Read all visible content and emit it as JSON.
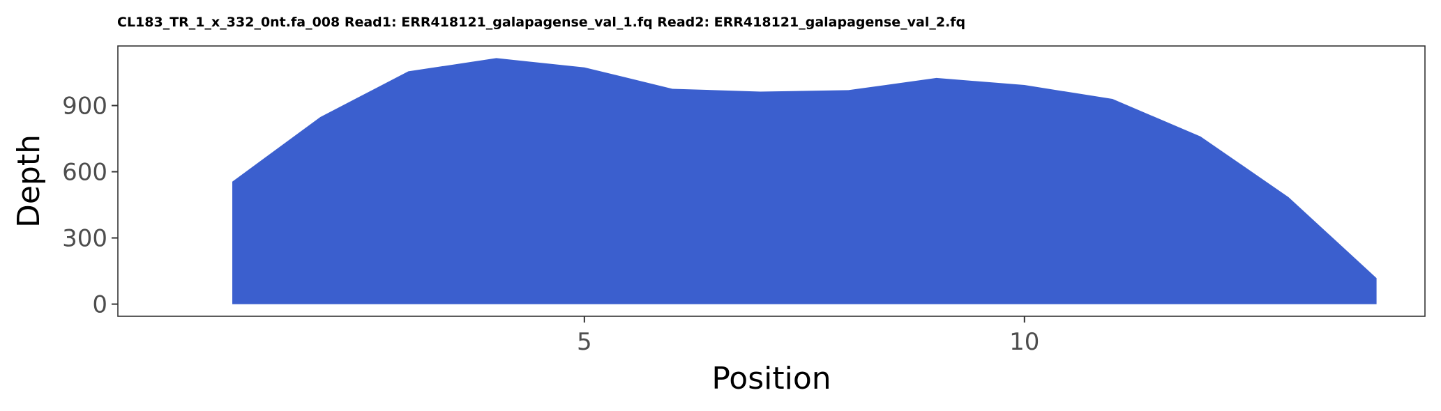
{
  "chart_data": {
    "type": "area",
    "title": "CL183_TR_1_x_332_0nt.fa_008 Read1: ERR418121_galapagense_val_1.fq Read2: ERR418121_galapagense_val_2.fq",
    "xlabel": "Position",
    "ylabel": "Depth",
    "x": [
      1,
      2,
      3,
      4,
      5,
      6,
      7,
      8,
      9,
      10,
      11,
      12,
      13,
      14
    ],
    "series": [
      {
        "values": [
          555,
          848,
          1055,
          1115,
          1073,
          976,
          963,
          970,
          1025,
          993,
          930,
          760,
          485,
          118
        ]
      }
    ],
    "xlim": [
      -0.3,
      14.55
    ],
    "ylim": [
      -55,
      1170
    ],
    "xticks": [
      5,
      10
    ],
    "yticks": [
      0,
      300,
      600,
      900
    ],
    "fill_color": "#3b5fce",
    "grid": false,
    "legend": "none"
  }
}
